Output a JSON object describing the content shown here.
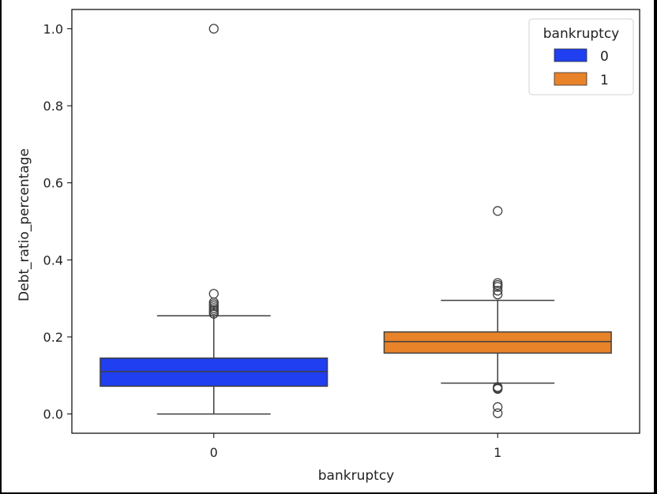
{
  "chart_data": {
    "type": "box",
    "xlabel": "bankruptcy",
    "ylabel": "Debt_ratio_percentage",
    "categories": [
      "0",
      "1"
    ],
    "ylim": [
      -0.05,
      1.05
    ],
    "yticks": [
      0.0,
      0.2,
      0.4,
      0.6,
      0.8,
      1.0
    ],
    "ytick_labels": [
      "0.0",
      "0.2",
      "0.4",
      "0.6",
      "0.8",
      "1.0"
    ],
    "grid": false,
    "legend": {
      "title": "bankruptcy",
      "placement": "top-right",
      "entries": [
        {
          "label": "0",
          "color": "#1f3ff0"
        },
        {
          "label": "1",
          "color": "#e8832a"
        }
      ]
    },
    "series": [
      {
        "name": "0",
        "color": "#1f3ff0",
        "q1": 0.072,
        "median": 0.11,
        "q3": 0.145,
        "whisker_low": 0.0,
        "whisker_high": 0.255,
        "outliers": [
          1.0,
          0.312,
          0.29,
          0.285,
          0.28,
          0.275,
          0.27,
          0.265,
          0.26
        ]
      },
      {
        "name": "1",
        "color": "#e8832a",
        "q1": 0.158,
        "median": 0.188,
        "q3": 0.213,
        "whisker_low": 0.08,
        "whisker_high": 0.295,
        "outliers": [
          0.527,
          0.34,
          0.335,
          0.33,
          0.32,
          0.31,
          0.07,
          0.067,
          0.065,
          0.018,
          0.002
        ]
      }
    ]
  }
}
